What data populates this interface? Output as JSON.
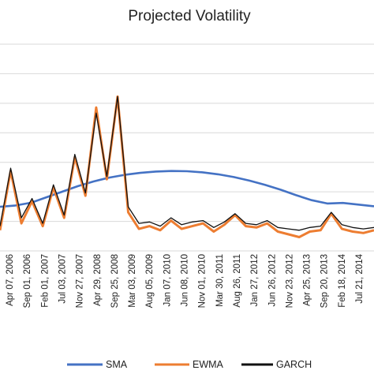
{
  "chart_data": {
    "type": "line",
    "title": "Projected Volatility",
    "xlabel": "",
    "ylabel": "",
    "grid": true,
    "legend_position": "bottom",
    "x_tick_labels": [
      "Apr 07, 2006",
      "Sep 01, 2006",
      "Feb 01, 2007",
      "Jul 03, 2007",
      "Nov 27, 2007",
      "Apr 29, 2008",
      "Sep 25, 2008",
      "Mar 03, 2009",
      "Aug 05, 2009",
      "Jan 07, 2010",
      "Jun 08, 2010",
      "Nov 01, 2010",
      "Mar 30, 2011",
      "Aug 26, 2011",
      "Jan 27, 2012",
      "Jun 26, 2012",
      "Nov 23, 2012",
      "Apr 25, 2013",
      "Sep 20, 2013",
      "Feb 18, 2014",
      "Jul 21, 2014"
    ],
    "y_gridlines": 8,
    "colors": {
      "SMA": "#4472c4",
      "EWMA": "#ed7d31",
      "GARCH": "#111111"
    },
    "series": [
      {
        "name": "SMA",
        "values": [
          1.6,
          1.65,
          1.75,
          1.95,
          2.15,
          2.35,
          2.52,
          2.66,
          2.76,
          2.83,
          2.88,
          2.9,
          2.89,
          2.85,
          2.78,
          2.68,
          2.55,
          2.4,
          2.22,
          2.02,
          1.84,
          1.72,
          1.74,
          1.68,
          1.62
        ]
      },
      {
        "name": "EWMA",
        "values": [
          0.75,
          2.9,
          1.0,
          1.8,
          0.9,
          2.3,
          1.2,
          3.4,
          2.0,
          5.2,
          2.6,
          5.6,
          1.4,
          0.8,
          0.9,
          0.75,
          1.1,
          0.8,
          0.9,
          1.0,
          0.7,
          0.95,
          1.3,
          0.9,
          0.85,
          1.0,
          0.7,
          0.6,
          0.5,
          0.7,
          0.75,
          1.35,
          0.8,
          0.7,
          0.65,
          0.75
        ]
      },
      {
        "name": "GARCH",
        "values": [
          0.9,
          3.0,
          1.2,
          1.9,
          1.0,
          2.4,
          1.3,
          3.5,
          2.1,
          5.0,
          2.7,
          5.6,
          1.6,
          1.0,
          1.05,
          0.9,
          1.2,
          0.95,
          1.05,
          1.1,
          0.85,
          1.05,
          1.35,
          1.0,
          0.95,
          1.1,
          0.85,
          0.8,
          0.75,
          0.85,
          0.9,
          1.4,
          0.95,
          0.85,
          0.8,
          0.85
        ]
      }
    ]
  }
}
